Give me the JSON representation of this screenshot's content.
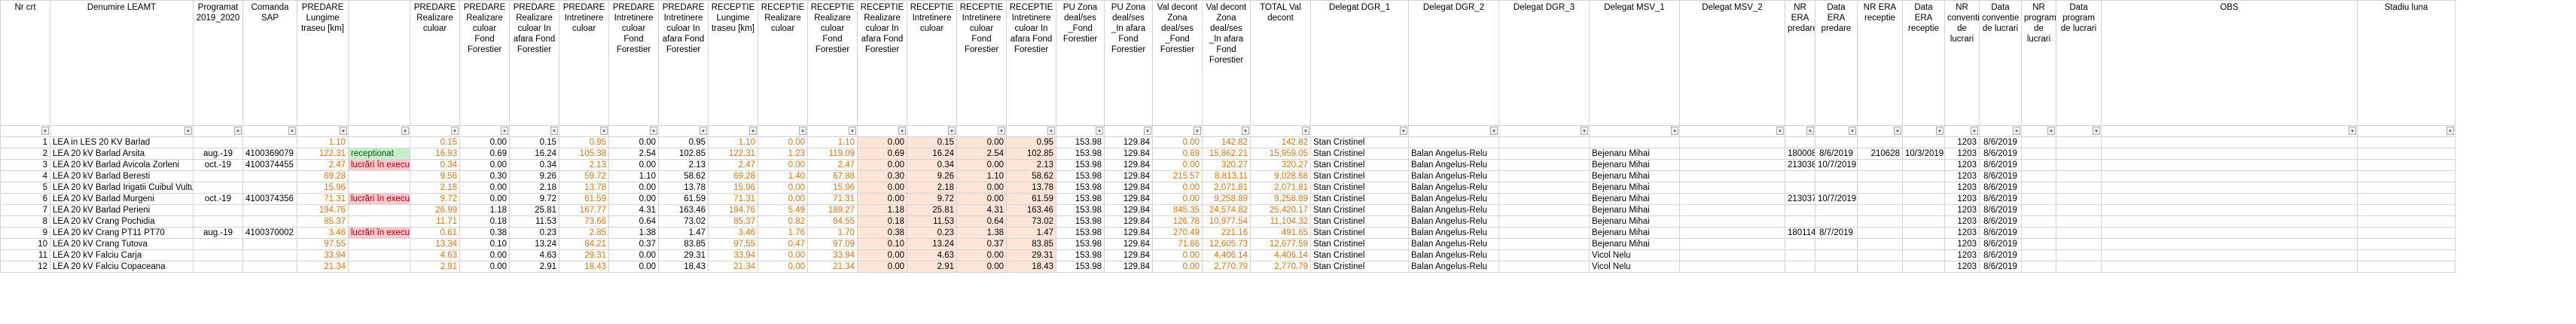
{
  "headers": [
    "Nr crt",
    "Denumire LEAMT",
    "Programat 2019_2020",
    "Comanda SAP",
    "PREDARE Lungime traseu [km]",
    "",
    "PREDARE Realizare culoar",
    "PREDARE Realizare culoar Fond Forestier",
    "PREDARE Realizare culoar In afara Fond Forestier",
    "PREDARE Intretinere culoar",
    "PREDARE Intretinere culoar Fond Forestier",
    "PREDARE Intretinere culoar In afara Fond Forestier",
    "RECEPTIE Lungime traseu [km]",
    "RECEPTIE Realizare culoar",
    "RECEPTIE Realizare culoar Fond Forestier",
    "RECEPTIE Realizare culoar In afara Fond Forestier",
    "RECEPTIE Intretinere culoar",
    "RECEPTIE Intretinere culoar Fond Forestier",
    "RECEPTIE Intretinere culoar In afara Fond Forestier",
    "PU Zona deal/ses _Fond Forestier",
    "PU Zona deal/ses _In afara Fond Forestier",
    "Val decont Zona deal/ses _Fond Forestier",
    "Val decont Zona deal/ses _In afara Fond Forestier",
    "TOTAL Val decont",
    "Delegat DGR_1",
    "Delegat DGR_2",
    "Delegat DGR_3",
    "Delegat MSV_1",
    "Delegat MSV_2",
    "NR ERA predare",
    "Data ERA predare",
    "NR ERA receptie",
    "Data ERA receptie",
    "NR conventie de lucrari",
    "Data conventie de lucrari",
    "NR program de lucrari",
    "Data program de lucrari",
    "OBS",
    "Stadiu luna"
  ],
  "rows": [
    [
      "1",
      "LEA in LES 20 KV Barlad",
      "",
      "",
      "1.10",
      "",
      "0.15",
      "0.00",
      "0.15",
      "0.95",
      "0.00",
      "0.95",
      "1.10",
      "0.00",
      "1.10",
      "0.00",
      "0.15",
      "0.00",
      "0.95",
      "153.98",
      "129.84",
      "0.00",
      "142.82",
      "142.82",
      "Stan Cristinel",
      "",
      "",
      "",
      "",
      "",
      "",
      "",
      "",
      "1203",
      "8/6/2019",
      "",
      "",
      "",
      ""
    ],
    [
      "2",
      "LEA 20 kV Barlad Arsita",
      "aug.-19",
      "4100369079",
      "122.31",
      "receptionat",
      "16.93",
      "0.69",
      "16.24",
      "105.38",
      "2.54",
      "102.85",
      "122.31",
      "1.23",
      "119.09",
      "0.69",
      "16.24",
      "2.54",
      "102.85",
      "153.98",
      "129.84",
      "0.69",
      "15,862.21",
      "15,959.05",
      "Stan Cristinel",
      "Balan Angelus-Relu",
      "",
      "Bejenaru Mihai",
      "",
      "180008",
      "8/6/2019",
      "210628",
      "10/3/2019",
      "1203",
      "8/6/2019",
      "",
      "",
      "",
      ""
    ],
    [
      "3",
      "LEA 20 kV Barlad Avicola Zorleni",
      "oct.-19",
      "4100374455",
      "2.47",
      "lucrări în execuție",
      "0.34",
      "0.00",
      "0.34",
      "2.13",
      "0.00",
      "2.13",
      "2.47",
      "0.00",
      "2.47",
      "0.00",
      "0.34",
      "0.00",
      "2.13",
      "153.98",
      "129.84",
      "0.00",
      "320.27",
      "320.27",
      "Stan Cristinel",
      "Balan Angelus-Relu",
      "",
      "Bejenaru Mihai",
      "",
      "213038",
      "10/7/2019",
      "",
      "",
      "1203",
      "8/6/2019",
      "",
      "",
      "",
      ""
    ],
    [
      "4",
      "LEA 20 kV Barlad Beresti",
      "",
      "",
      "69.28",
      "",
      "9.56",
      "0.30",
      "9.26",
      "59.72",
      "1.10",
      "58.62",
      "69.28",
      "1.40",
      "67.88",
      "0.30",
      "9.26",
      "1.10",
      "58.62",
      "153.98",
      "129.84",
      "215.57",
      "8,813.11",
      "9,028.68",
      "Stan Cristinel",
      "Balan Angelus-Relu",
      "",
      "Bejenaru Mihai",
      "",
      "",
      "",
      "",
      "",
      "1203",
      "8/6/2019",
      "",
      "",
      "",
      ""
    ],
    [
      "5",
      "LEA 20 kV Barlad Irigatii Cuibul Vulturilor",
      "",
      "",
      "15.96",
      "",
      "2.18",
      "0.00",
      "2.18",
      "13.78",
      "0.00",
      "13.78",
      "15.96",
      "0.00",
      "15.96",
      "0.00",
      "2.18",
      "0.00",
      "13.78",
      "153.98",
      "129.84",
      "0.00",
      "2,071.81",
      "2,071.81",
      "Stan Cristinel",
      "Balan Angelus-Relu",
      "",
      "Bejenaru Mihai",
      "",
      "",
      "",
      "",
      "",
      "1203",
      "8/6/2019",
      "",
      "",
      "",
      ""
    ],
    [
      "6",
      "LEA 20 kV Barlad Murgeni",
      "oct.-19",
      "4100374356",
      "71.31",
      "lucrări în execuție",
      "9.72",
      "0.00",
      "9.72",
      "61.59",
      "0.00",
      "61.59",
      "71.31",
      "0.00",
      "71.31",
      "0.00",
      "9.72",
      "0.00",
      "61.59",
      "153.98",
      "129.84",
      "0.00",
      "9,258.89",
      "9,258.89",
      "Stan Cristinel",
      "Balan Angelus-Relu",
      "",
      "Bejenaru Mihai",
      "",
      "213037",
      "10/7/2019",
      "",
      "",
      "1203",
      "8/6/2019",
      "",
      "",
      "",
      ""
    ],
    [
      "7",
      "LEA 20 kV Barlad Perieni",
      "",
      "",
      "194.76",
      "",
      "26.99",
      "1.18",
      "25.81",
      "167.77",
      "4.31",
      "163.46",
      "194.76",
      "5.49",
      "189.27",
      "1.18",
      "25.81",
      "4.31",
      "163.46",
      "153.98",
      "129.84",
      "845.35",
      "24,574.82",
      "25,420.17",
      "Stan Cristinel",
      "Balan Angelus-Relu",
      "",
      "Bejenaru Mihai",
      "",
      "",
      "",
      "",
      "",
      "1203",
      "8/6/2019",
      "",
      "",
      "",
      ""
    ],
    [
      "8",
      "LEA 20 kV Crang Pochidia",
      "",
      "",
      "85.37",
      "",
      "11.71",
      "0.18",
      "11.53",
      "73.66",
      "0.64",
      "73.02",
      "85.37",
      "0.82",
      "84.55",
      "0.18",
      "11.53",
      "0.64",
      "73.02",
      "153.98",
      "129.84",
      "126.78",
      "10,977.54",
      "11,104.32",
      "Stan Cristinel",
      "Balan Angelus-Relu",
      "",
      "Bejenaru Mihai",
      "",
      "",
      "",
      "",
      "",
      "1203",
      "8/6/2019",
      "",
      "",
      "",
      ""
    ],
    [
      "9",
      "LEA 20 kV Crang PT11 PT70",
      "aug.-19",
      "4100370002",
      "3.46",
      "lucrări în execuție",
      "0.61",
      "0.38",
      "0.23",
      "2.85",
      "1.38",
      "1.47",
      "3.46",
      "1.76",
      "1.70",
      "0.38",
      "0.23",
      "1.38",
      "1.47",
      "153.98",
      "129.84",
      "270.49",
      "221.16",
      "491.65",
      "Stan Cristinel",
      "Balan Angelus-Relu",
      "",
      "Bejenaru Mihai",
      "",
      "180114",
      "8/7/2019",
      "",
      "",
      "1203",
      "8/6/2019",
      "",
      "",
      "",
      ""
    ],
    [
      "10",
      "LEA 20 kV Crang Tutova",
      "",
      "",
      "97.55",
      "",
      "13.34",
      "0.10",
      "13.24",
      "84.21",
      "0.37",
      "83.85",
      "97.55",
      "0.47",
      "97.09",
      "0.10",
      "13.24",
      "0.37",
      "83.85",
      "153.98",
      "129.84",
      "71.86",
      "12,605.73",
      "12,677.59",
      "Stan Cristinel",
      "Balan Angelus-Relu",
      "",
      "Bejenaru Mihai",
      "",
      "",
      "",
      "",
      "",
      "1203",
      "8/6/2019",
      "",
      "",
      "",
      ""
    ],
    [
      "11",
      "LEA 20 kV Falciu Carja",
      "",
      "",
      "33.94",
      "",
      "4.63",
      "0.00",
      "4.63",
      "29.31",
      "0.00",
      "29.31",
      "33.94",
      "0.00",
      "33.94",
      "0.00",
      "4.63",
      "0.00",
      "29.31",
      "153.98",
      "129.84",
      "0.00",
      "4,406.14",
      "4,406.14",
      "Stan Cristinel",
      "Balan Angelus-Relu",
      "",
      "Vicol Nelu",
      "",
      "",
      "",
      "",
      "",
      "1203",
      "8/6/2019",
      "",
      "",
      "",
      ""
    ],
    [
      "12",
      "LEA 20 kV Falciu Copaceana",
      "",
      "",
      "21.34",
      "",
      "2.91",
      "0.00",
      "2.91",
      "18.43",
      "0.00",
      "18.43",
      "21.34",
      "0.00",
      "21.34",
      "0.00",
      "2.91",
      "0.00",
      "18.43",
      "153.98",
      "129.84",
      "0.00",
      "2,770.79",
      "2,770.79",
      "Stan Cristinel",
      "Balan Angelus-Relu",
      "",
      "Vicol Nelu",
      "",
      "",
      "",
      "",
      "",
      "1203",
      "8/6/2019",
      "",
      "",
      "",
      ""
    ]
  ],
  "colors": {
    "highlight": "#fce4d6",
    "orange_text": "#e47300",
    "ok_fill": "#c6efce",
    "ok_text": "#006100",
    "warn_fill": "#ffc7ce",
    "warn_text": "#9c0006",
    "gridline": "#d4d4d4"
  },
  "filter_icon": "chevron-down-icon"
}
